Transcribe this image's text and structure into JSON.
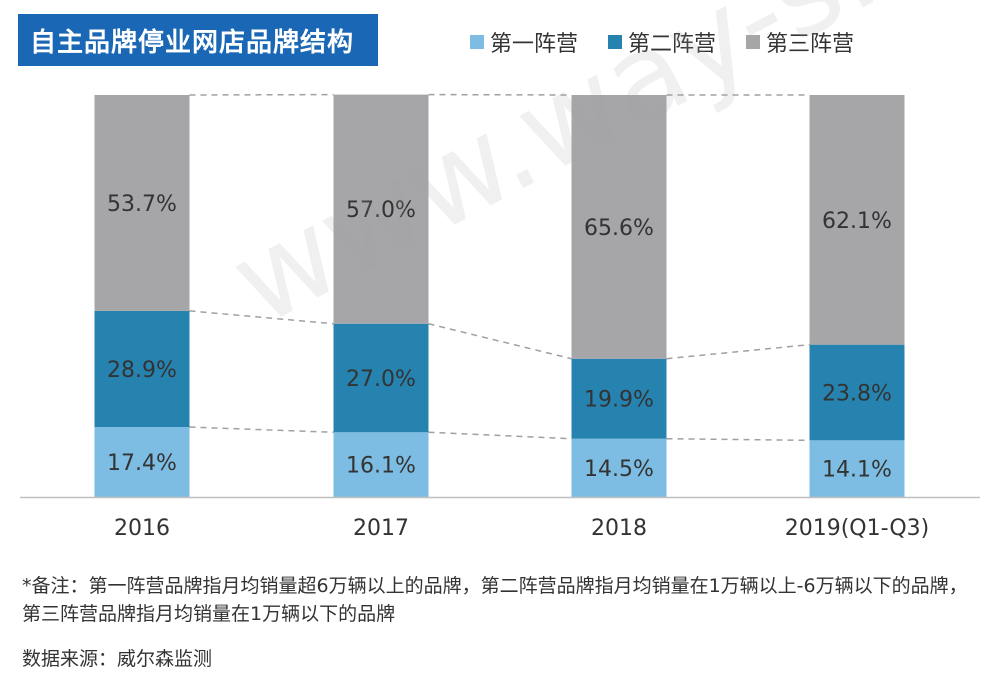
{
  "title": "自主品牌停业网店品牌结构",
  "colors": {
    "tier1": "#7dbde3",
    "tier2": "#2683b0",
    "tier3": "#a6a6a8",
    "title_bg": "#1a67b5"
  },
  "chart_data": {
    "type": "bar",
    "stacked": true,
    "percent": true,
    "categories": [
      "2016",
      "2017",
      "2018",
      "2019(Q1-Q3)"
    ],
    "series": [
      {
        "name": "第一阵营",
        "values": [
          17.4,
          16.1,
          14.5,
          14.1
        ],
        "labels": [
          "17.4%",
          "16.1%",
          "14.5%",
          "14.1%"
        ]
      },
      {
        "name": "第二阵营",
        "values": [
          28.9,
          27.0,
          19.9,
          23.8
        ],
        "labels": [
          "28.9%",
          "27.0%",
          "19.9%",
          "23.8%"
        ]
      },
      {
        "name": "第三阵营",
        "values": [
          53.7,
          57.0,
          65.6,
          62.1
        ],
        "labels": [
          "53.7%",
          "57.0%",
          "65.6%",
          "62.1%"
        ]
      }
    ],
    "ylim": [
      0,
      100
    ],
    "connector_lines": true
  },
  "note": "*备注：第一阵营品牌指月均销量超6万辆以上的品牌，第二阵营品牌指月均销量在1万辆以上-6万辆以下的品牌，第三阵营品牌指月均销量在1万辆以下的品牌",
  "source": "数据来源：威尔森监测",
  "watermark": "www.way-s.cn"
}
